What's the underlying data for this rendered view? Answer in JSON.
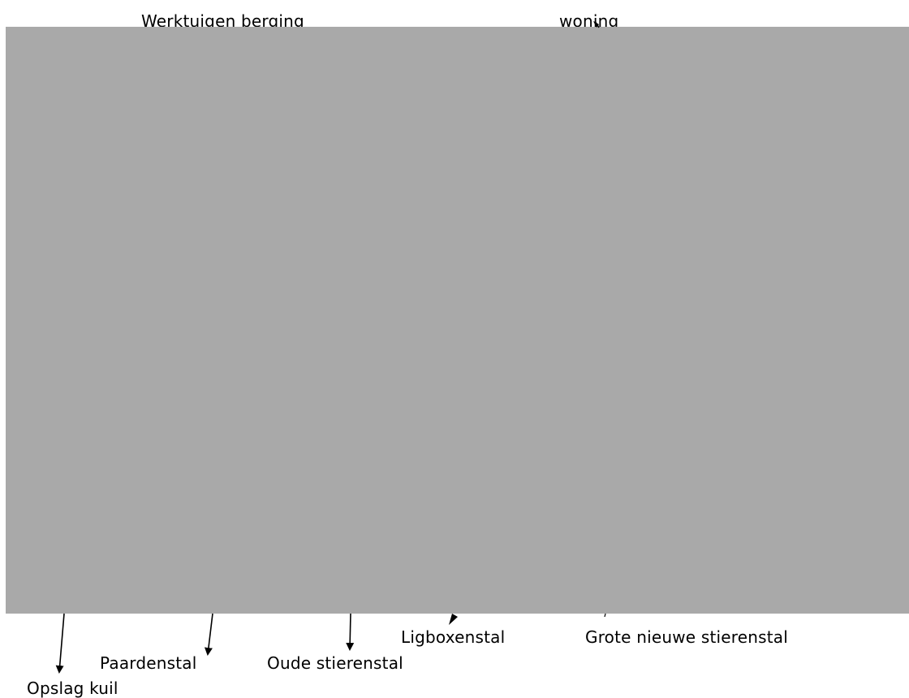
{
  "image": {
    "fill_color": "#a9a9a9",
    "description_visible": false
  },
  "labels": {
    "werktuigen_berging": "Werktuigen berging",
    "woning": "woning",
    "ligboxenstal": "Ligboxenstal",
    "grote_nieuwe_stierenstal": "Grote nieuwe stierenstal",
    "paardenstal": "Paardenstal",
    "oude_stierenstal": "Oude stierenstal",
    "opslag_kuil": "Opslag kuil"
  },
  "colors": {
    "text": "#000000",
    "arrow": "#000000",
    "background": "#ffffff"
  }
}
